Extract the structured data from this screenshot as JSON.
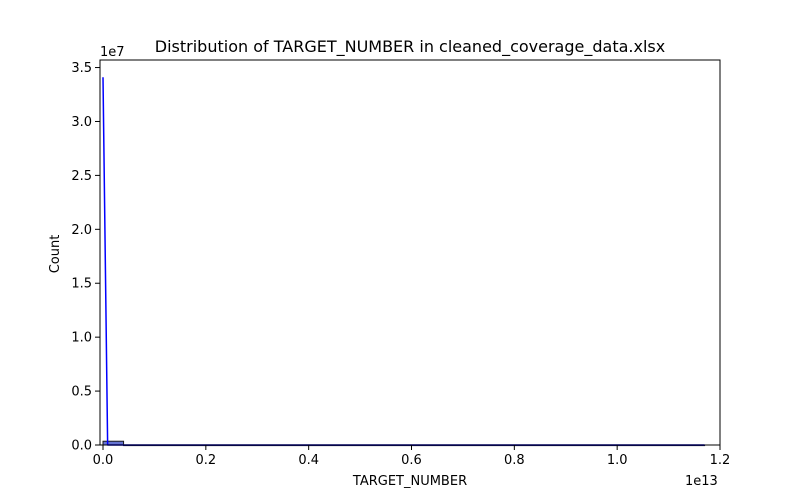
{
  "chart_data": {
    "type": "histogram",
    "title": "Distribution of TARGET_NUMBER in cleaned_coverage_data.xlsx",
    "xlabel": "TARGET_NUMBER",
    "ylabel": "Count",
    "x_multiplier": "1e13",
    "y_multiplier": "1e7",
    "xlim": [
      -0.00584,
      1.2
    ],
    "ylim": [
      0,
      3.57
    ],
    "x_ticks": [
      0.0,
      0.2,
      0.4,
      0.6,
      0.8,
      1.0,
      1.2
    ],
    "x_tick_labels": [
      "0.0",
      "0.2",
      "0.4",
      "0.6",
      "0.8",
      "1.0",
      "1.2"
    ],
    "y_ticks": [
      0.0,
      0.5,
      1.0,
      1.5,
      2.0,
      2.5,
      3.0,
      3.5
    ],
    "y_tick_labels": [
      "0.0",
      "0.5",
      "1.0",
      "1.5",
      "2.0",
      "2.5",
      "3.0",
      "3.5"
    ],
    "histogram": {
      "bins": [
        {
          "x0": 0.0,
          "x1": 0.04,
          "count": 0.035
        },
        {
          "x0": 0.04,
          "x1": 1.17,
          "count": 0.0
        }
      ],
      "fill_color": "#4a5ac8",
      "edge_color": "#1a1a1a"
    },
    "kde_line": {
      "color": "#0000ff",
      "points": [
        [
          0.0,
          3.41
        ],
        [
          0.009,
          0.0
        ],
        [
          0.2,
          0.0
        ],
        [
          0.4,
          0.0
        ],
        [
          0.6,
          0.0
        ],
        [
          0.8,
          0.0
        ],
        [
          1.0,
          0.0
        ],
        [
          1.17,
          0.0
        ]
      ]
    },
    "grid": false,
    "legend": "none"
  }
}
